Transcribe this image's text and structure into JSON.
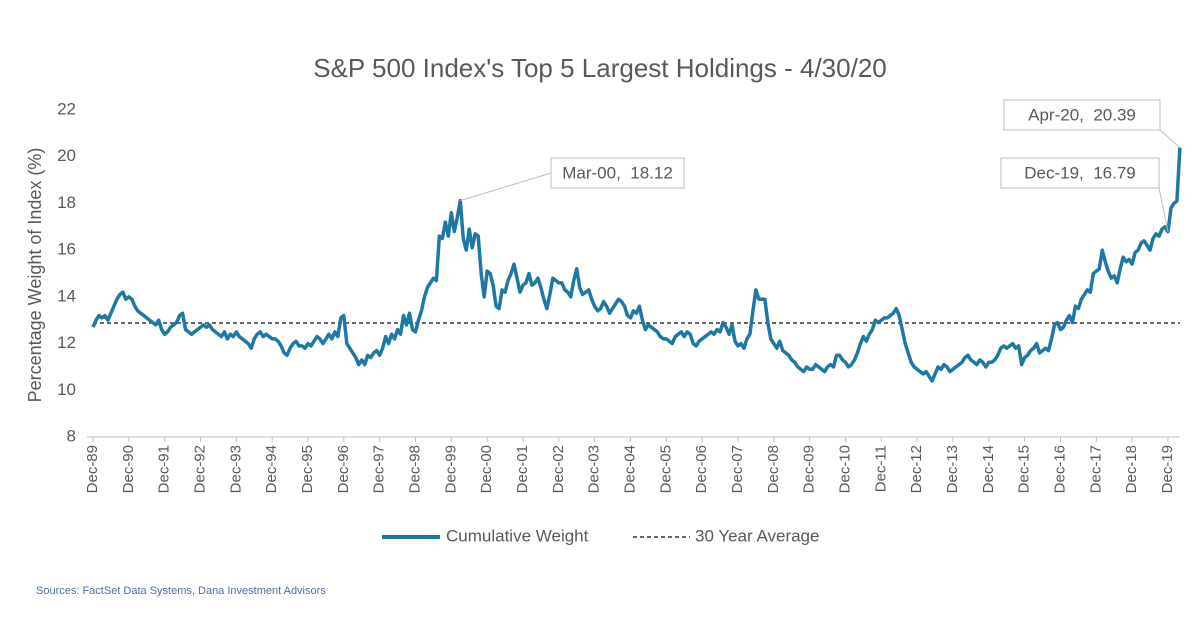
{
  "chart_data": {
    "type": "line",
    "title": "S&P 500 Index's Top 5 Largest Holdings - 4/30/20",
    "y_label": "Percentage Weight of Index (%)",
    "source": "Sources: FactSet Data Systems, Dana Investment Advisors",
    "categories": [
      "Dec-89",
      null,
      null,
      null,
      null,
      null,
      null,
      null,
      null,
      null,
      null,
      null,
      "Dec-90",
      null,
      null,
      null,
      null,
      null,
      null,
      null,
      null,
      null,
      null,
      null,
      "Dec-91",
      null,
      null,
      null,
      null,
      null,
      null,
      null,
      null,
      null,
      null,
      null,
      "Dec-92",
      null,
      null,
      null,
      null,
      null,
      null,
      null,
      null,
      null,
      null,
      null,
      "Dec-93",
      null,
      null,
      null,
      null,
      null,
      null,
      null,
      null,
      null,
      null,
      null,
      "Dec-94",
      null,
      null,
      null,
      null,
      null,
      null,
      null,
      null,
      null,
      null,
      null,
      "Dec-95",
      null,
      null,
      null,
      null,
      null,
      null,
      null,
      null,
      null,
      null,
      null,
      "Dec-96",
      null,
      null,
      null,
      null,
      null,
      null,
      null,
      null,
      null,
      null,
      null,
      "Dec-97",
      null,
      null,
      null,
      null,
      null,
      null,
      null,
      null,
      null,
      null,
      null,
      "Dec-98",
      null,
      null,
      null,
      null,
      null,
      null,
      null,
      null,
      null,
      null,
      null,
      "Dec-99",
      null,
      null,
      null,
      null,
      null,
      null,
      null,
      null,
      null,
      null,
      null,
      "Dec-00",
      null,
      null,
      null,
      null,
      null,
      null,
      null,
      null,
      null,
      null,
      null,
      "Dec-01",
      null,
      null,
      null,
      null,
      null,
      null,
      null,
      null,
      null,
      null,
      null,
      "Dec-02",
      null,
      null,
      null,
      null,
      null,
      null,
      null,
      null,
      null,
      null,
      null,
      "Dec-03",
      null,
      null,
      null,
      null,
      null,
      null,
      null,
      null,
      null,
      null,
      null,
      "Dec-04",
      null,
      null,
      null,
      null,
      null,
      null,
      null,
      null,
      null,
      null,
      null,
      "Dec-05",
      null,
      null,
      null,
      null,
      null,
      null,
      null,
      null,
      null,
      null,
      null,
      "Dec-06",
      null,
      null,
      null,
      null,
      null,
      null,
      null,
      null,
      null,
      null,
      null,
      "Dec-07",
      null,
      null,
      null,
      null,
      null,
      null,
      null,
      null,
      null,
      null,
      null,
      "Dec-08",
      null,
      null,
      null,
      null,
      null,
      null,
      null,
      null,
      null,
      null,
      null,
      "Dec-09",
      null,
      null,
      null,
      null,
      null,
      null,
      null,
      null,
      null,
      null,
      null,
      "Dec-10",
      null,
      null,
      null,
      null,
      null,
      null,
      null,
      null,
      null,
      null,
      null,
      "Dec-11",
      null,
      null,
      null,
      null,
      null,
      null,
      null,
      null,
      null,
      null,
      null,
      "Dec-12",
      null,
      null,
      null,
      null,
      null,
      null,
      null,
      null,
      null,
      null,
      null,
      "Dec-13",
      null,
      null,
      null,
      null,
      null,
      null,
      null,
      null,
      null,
      null,
      null,
      "Dec-14",
      null,
      null,
      null,
      null,
      null,
      null,
      null,
      null,
      null,
      null,
      null,
      "Dec-15",
      null,
      null,
      null,
      null,
      null,
      null,
      null,
      null,
      null,
      null,
      null,
      "Dec-16",
      null,
      null,
      null,
      null,
      null,
      null,
      null,
      null,
      null,
      null,
      null,
      "Dec-17",
      null,
      null,
      null,
      null,
      null,
      null,
      null,
      null,
      null,
      null,
      null,
      "Dec-18",
      null,
      null,
      null,
      null,
      null,
      null,
      null,
      null,
      null,
      null,
      null,
      "Dec-19",
      null,
      null,
      null,
      null
    ],
    "series": [
      {
        "name": "Cumulative Weight",
        "color": "#1f78a4",
        "values": [
          12.7,
          13.0,
          13.2,
          13.1,
          13.2,
          13.0,
          13.3,
          13.6,
          13.9,
          14.1,
          14.2,
          13.9,
          14.0,
          13.9,
          13.6,
          13.4,
          13.3,
          13.2,
          13.1,
          13.0,
          12.9,
          12.8,
          13.0,
          12.6,
          12.4,
          12.5,
          12.7,
          12.8,
          12.9,
          13.2,
          13.3,
          12.6,
          12.5,
          12.4,
          12.5,
          12.6,
          12.7,
          12.8,
          12.7,
          12.8,
          12.6,
          12.5,
          12.4,
          12.3,
          12.5,
          12.2,
          12.4,
          12.3,
          12.5,
          12.3,
          12.2,
          12.1,
          12.0,
          11.8,
          12.2,
          12.4,
          12.5,
          12.3,
          12.4,
          12.3,
          12.2,
          12.2,
          12.1,
          11.9,
          11.6,
          11.5,
          11.8,
          12.0,
          12.1,
          11.9,
          11.9,
          11.8,
          12.0,
          11.9,
          12.1,
          12.3,
          12.2,
          12.0,
          12.2,
          12.4,
          12.2,
          12.5,
          12.3,
          13.1,
          13.2,
          12.0,
          11.8,
          11.6,
          11.4,
          11.1,
          11.3,
          11.1,
          11.5,
          11.4,
          11.6,
          11.7,
          11.5,
          11.8,
          12.3,
          12.0,
          12.4,
          12.2,
          12.6,
          12.4,
          13.2,
          12.8,
          13.3,
          12.6,
          12.5,
          13.0,
          13.4,
          14.0,
          14.4,
          14.6,
          14.8,
          14.7,
          16.6,
          16.5,
          17.2,
          16.6,
          17.6,
          16.8,
          17.4,
          18.12,
          16.5,
          16.0,
          16.9,
          16.1,
          16.7,
          16.6,
          15.0,
          14.0,
          15.1,
          15.0,
          14.5,
          13.6,
          13.5,
          14.3,
          14.2,
          14.7,
          15.0,
          15.4,
          14.8,
          14.2,
          14.5,
          14.6,
          15.0,
          14.5,
          14.6,
          14.8,
          14.4,
          13.9,
          13.5,
          14.1,
          14.8,
          14.7,
          14.6,
          14.6,
          14.3,
          14.2,
          14.0,
          14.7,
          15.2,
          14.4,
          14.1,
          14.2,
          14.3,
          13.9,
          13.6,
          13.4,
          13.5,
          13.8,
          13.6,
          13.3,
          13.5,
          13.7,
          13.9,
          13.8,
          13.6,
          13.2,
          13.1,
          13.4,
          13.3,
          13.6,
          13.0,
          12.6,
          12.8,
          12.7,
          12.6,
          12.5,
          12.3,
          12.2,
          12.2,
          12.1,
          12.0,
          12.3,
          12.4,
          12.5,
          12.3,
          12.5,
          12.4,
          12.0,
          11.9,
          12.1,
          12.2,
          12.3,
          12.4,
          12.5,
          12.4,
          12.6,
          12.5,
          12.9,
          12.7,
          12.4,
          12.8,
          12.1,
          11.9,
          12.0,
          11.8,
          12.2,
          12.4,
          13.4,
          14.3,
          13.9,
          13.9,
          13.9,
          12.9,
          12.2,
          12.0,
          11.8,
          12.1,
          11.7,
          11.6,
          11.5,
          11.3,
          11.2,
          11.0,
          10.9,
          10.8,
          11.0,
          10.9,
          10.9,
          11.1,
          11.0,
          10.9,
          10.8,
          11.0,
          11.1,
          11.0,
          11.5,
          11.5,
          11.3,
          11.2,
          11.0,
          11.1,
          11.3,
          11.6,
          12.0,
          12.3,
          12.1,
          12.4,
          12.6,
          13.0,
          12.9,
          13.0,
          13.1,
          13.1,
          13.2,
          13.3,
          13.5,
          13.2,
          12.6,
          12.0,
          11.6,
          11.2,
          11.0,
          10.9,
          10.8,
          10.7,
          10.8,
          10.6,
          10.4,
          10.7,
          11.0,
          10.9,
          11.1,
          11.0,
          10.8,
          10.9,
          11.0,
          11.1,
          11.2,
          11.4,
          11.5,
          11.3,
          11.2,
          11.1,
          11.3,
          11.2,
          11.0,
          11.2,
          11.2,
          11.3,
          11.5,
          11.8,
          11.9,
          11.8,
          11.9,
          12.0,
          11.8,
          11.9,
          11.1,
          11.4,
          11.5,
          11.7,
          11.8,
          12.0,
          11.6,
          11.7,
          11.8,
          11.7,
          12.2,
          12.8,
          12.9,
          12.6,
          12.7,
          13.0,
          13.2,
          12.9,
          13.6,
          13.5,
          13.9,
          14.1,
          14.3,
          14.2,
          15.0,
          15.1,
          15.2,
          16.0,
          15.5,
          15.1,
          14.8,
          14.9,
          14.6,
          15.2,
          15.7,
          15.5,
          15.6,
          15.4,
          15.9,
          16.0,
          16.3,
          16.4,
          16.2,
          16.0,
          16.5,
          16.7,
          16.6,
          16.9,
          17.0,
          16.79,
          17.8,
          18.0,
          18.1,
          20.39
        ]
      }
    ],
    "reference_line": {
      "name": "30 Year Average",
      "value": 12.88,
      "color": "#333333",
      "dashed": true
    },
    "annotations": [
      {
        "text": "Mar-00,  18.12",
        "index": 123
      },
      {
        "text": "Dec-19,  16.79",
        "index": 360
      },
      {
        "text": "Apr-20,  20.39",
        "index": 364
      }
    ],
    "ylim": [
      8,
      22
    ],
    "yticks": [
      8,
      10,
      12,
      14,
      16,
      18,
      20,
      22
    ],
    "grid": false,
    "legend": "bottom"
  }
}
